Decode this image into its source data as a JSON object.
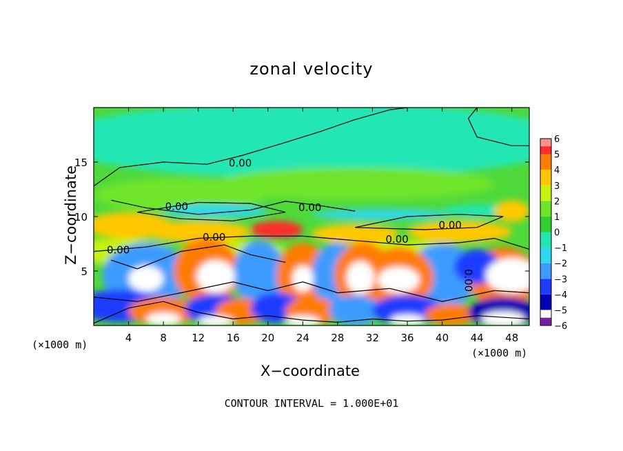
{
  "chart_data": {
    "type": "heatmap",
    "title": "zonal velocity",
    "xlabel": "X−coordinate",
    "ylabel": "Z−coordinate",
    "x_unit_note": "(×1000 m)",
    "xlim": [
      0,
      50
    ],
    "ylim": [
      0,
      20
    ],
    "x_ticks": [
      4,
      8,
      12,
      16,
      20,
      24,
      28,
      32,
      36,
      40,
      44,
      48
    ],
    "y_ticks": [
      5,
      10,
      15
    ],
    "colorbar": {
      "min": -6,
      "max": 6,
      "ticks": [
        6,
        5,
        4,
        3,
        2,
        1,
        0,
        -1,
        -2,
        -3,
        -4,
        -5,
        -6
      ],
      "colors": [
        "#7a1fa2",
        "#0000b4",
        "#1f3cff",
        "#3c9bff",
        "#2fd7ee",
        "#24e6b4",
        "#2ecf2e",
        "#6fe52a",
        "#c8f20f",
        "#ffc800",
        "#ff7c00",
        "#ff2a2a",
        "#ff9090"
      ]
    },
    "contour_labels": [
      "0.00",
      "0.00",
      "0.00",
      "0.00",
      "0.00",
      "0.00",
      "0.00",
      "0.00"
    ],
    "footer": "CONTOUR INTERVAL = 1.000E+01",
    "grid": false
  }
}
